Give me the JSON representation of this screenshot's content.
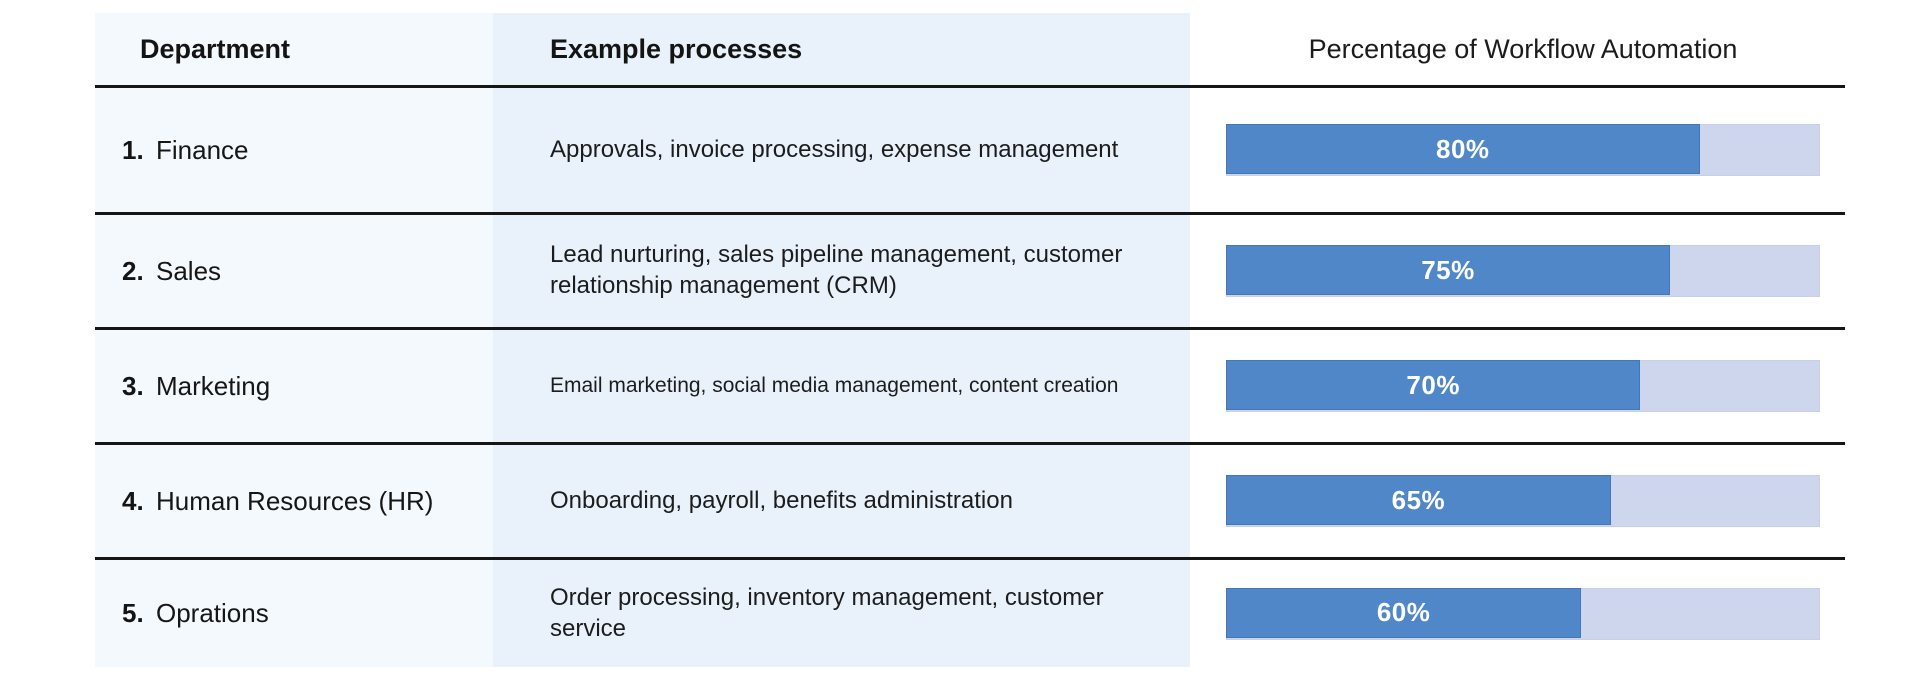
{
  "table": {
    "headers": {
      "department": "Department",
      "processes": "Example processes",
      "percentage": "Percentage of Workflow Automation"
    },
    "rows": [
      {
        "num": "1.",
        "department": "Finance",
        "processes": "Approvals, invoice processing, expense management",
        "percent": 80,
        "percent_label": "80%"
      },
      {
        "num": "2.",
        "department": "Sales",
        "processes": "Lead nurturing, sales pipeline management, customer relationship management (CRM)",
        "percent": 75,
        "percent_label": "75%"
      },
      {
        "num": "3.",
        "department": "Marketing",
        "processes": "Email marketing, social media management, content creation",
        "percent": 70,
        "percent_label": "70%"
      },
      {
        "num": "4.",
        "department": "Human Resources (HR)",
        "processes": "Onboarding, payroll, benefits administration",
        "percent": 65,
        "percent_label": "65%"
      },
      {
        "num": "5.",
        "department": "Oprations",
        "processes": "Order processing, inventory management, customer service",
        "percent": 60,
        "percent_label": "60%"
      }
    ]
  },
  "colors": {
    "bar_fill": "#4f87c8",
    "bar_track": "#cdd6ec",
    "col1_bg": "#f4f9fd",
    "col2_bg": "#e9f2fb",
    "separator": "#161616"
  },
  "chart_data": {
    "type": "bar",
    "orientation": "horizontal",
    "title": "Percentage of Workflow Automation",
    "categories": [
      "Finance",
      "Sales",
      "Marketing",
      "Human Resources (HR)",
      "Oprations"
    ],
    "values": [
      80,
      75,
      70,
      65,
      60
    ],
    "value_labels": [
      "80%",
      "75%",
      "70%",
      "65%",
      "60%"
    ],
    "xlim": [
      0,
      100
    ],
    "bar_color": "#4f87c8",
    "track_color": "#cdd6ec",
    "grid": false,
    "legend": false
  }
}
